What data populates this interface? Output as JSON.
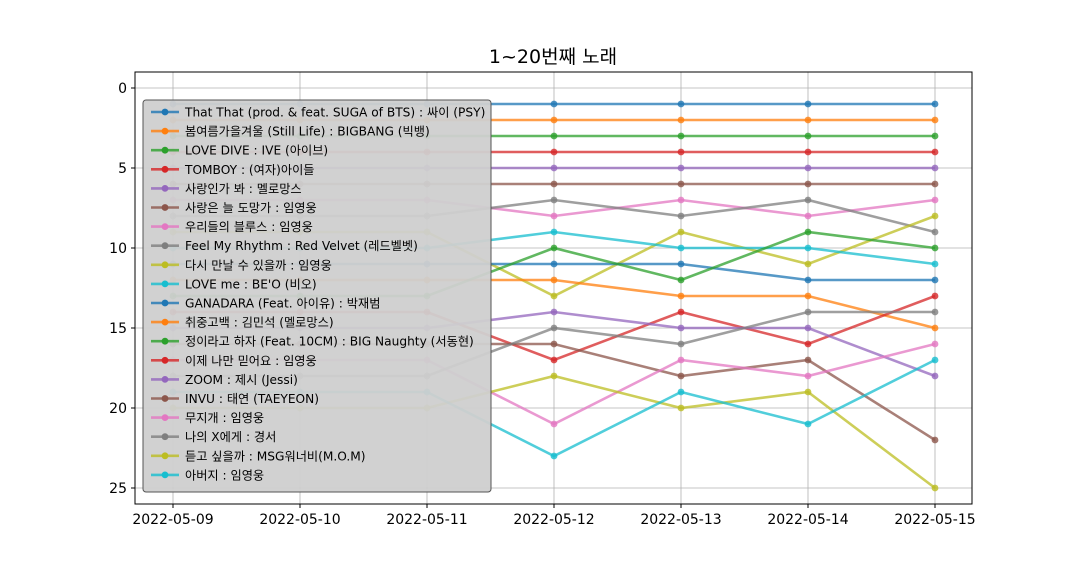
{
  "chart_data": {
    "type": "line",
    "title": "1~20번째 노래",
    "xlabel": "",
    "ylabel": "",
    "x": [
      "2022-05-09",
      "2022-05-10",
      "2022-05-11",
      "2022-05-12",
      "2022-05-13",
      "2022-05-14",
      "2022-05-15"
    ],
    "ylim": [
      26,
      -1
    ],
    "y_ticks": [
      "0",
      "5",
      "10",
      "15",
      "20",
      "25"
    ],
    "y_inverted": true,
    "grid": true,
    "legend_position": "upper-left",
    "series": [
      {
        "name": "That That (prod. & feat. SUGA of BTS) : 싸이 (PSY)",
        "color": "#1f77b4",
        "values": [
          1,
          1,
          1,
          1,
          1,
          1,
          1
        ]
      },
      {
        "name": "봄여름가을겨울 (Still Life) : BIGBANG (빅뱅)",
        "color": "#ff7f0e",
        "values": [
          2,
          2,
          2,
          2,
          2,
          2,
          2
        ]
      },
      {
        "name": "LOVE DIVE : IVE (아이브)",
        "color": "#2ca02c",
        "values": [
          3,
          3,
          3,
          3,
          3,
          3,
          3
        ]
      },
      {
        "name": "TOMBOY : (여자)아이들",
        "color": "#d62728",
        "values": [
          4,
          4,
          4,
          4,
          4,
          4,
          4
        ]
      },
      {
        "name": "사랑인가 봐 : 멜로망스",
        "color": "#9467bd",
        "values": [
          5,
          5,
          5,
          5,
          5,
          5,
          5
        ]
      },
      {
        "name": "사랑은 늘 도망가 : 임영웅",
        "color": "#8c564b",
        "values": [
          6,
          6,
          6,
          6,
          6,
          6,
          6
        ]
      },
      {
        "name": "우리들의 블루스 : 임영웅",
        "color": "#e377c2",
        "values": [
          7,
          7,
          7,
          8,
          7,
          8,
          7
        ]
      },
      {
        "name": "Feel My Rhythm : Red Velvet (레드벨벳)",
        "color": "#7f7f7f",
        "values": [
          8,
          8,
          8,
          7,
          8,
          7,
          9
        ]
      },
      {
        "name": "다시 만날 수 있을까 : 임영웅",
        "color": "#bcbd22",
        "values": [
          9,
          9,
          9,
          13,
          9,
          11,
          8
        ]
      },
      {
        "name": "LOVE me : BE'O (비오)",
        "color": "#17becf",
        "values": [
          10,
          10,
          10,
          9,
          10,
          10,
          11
        ]
      },
      {
        "name": "GANADARA (Feat. 아이유) : 박재범",
        "color": "#1f77b4",
        "values": [
          11,
          11,
          11,
          11,
          11,
          12,
          12
        ]
      },
      {
        "name": "취중고백 : 김민석 (멜로망스)",
        "color": "#ff7f0e",
        "values": [
          12,
          12,
          12,
          12,
          13,
          13,
          15
        ]
      },
      {
        "name": "정이라고 하자 (Feat. 10CM) : BIG Naughty (서동현)",
        "color": "#2ca02c",
        "values": [
          13,
          13,
          13,
          10,
          12,
          9,
          10
        ]
      },
      {
        "name": "이제 나만 믿어요 : 임영웅",
        "color": "#d62728",
        "values": [
          14,
          14,
          14,
          17,
          14,
          16,
          13
        ]
      },
      {
        "name": "ZOOM : 제시 (Jessi)",
        "color": "#9467bd",
        "values": [
          15,
          15,
          15,
          14,
          15,
          15,
          18
        ]
      },
      {
        "name": "INVU : 태연 (TAEYEON)",
        "color": "#8c564b",
        "values": [
          16,
          16,
          16,
          16,
          18,
          17,
          22
        ]
      },
      {
        "name": "무지개 : 임영웅",
        "color": "#e377c2",
        "values": [
          17,
          17,
          17,
          21,
          17,
          18,
          16
        ]
      },
      {
        "name": "나의 X에게 : 경서",
        "color": "#7f7f7f",
        "values": [
          18,
          18,
          18,
          15,
          16,
          14,
          14
        ]
      },
      {
        "name": "듣고 싶을까 : MSG워너비(M.O.M)",
        "color": "#bcbd22",
        "values": [
          20,
          20,
          20,
          18,
          20,
          19,
          25
        ]
      },
      {
        "name": "아버지 : 임영웅",
        "color": "#17becf",
        "values": [
          19,
          19,
          19,
          23,
          19,
          21,
          17
        ]
      }
    ]
  }
}
